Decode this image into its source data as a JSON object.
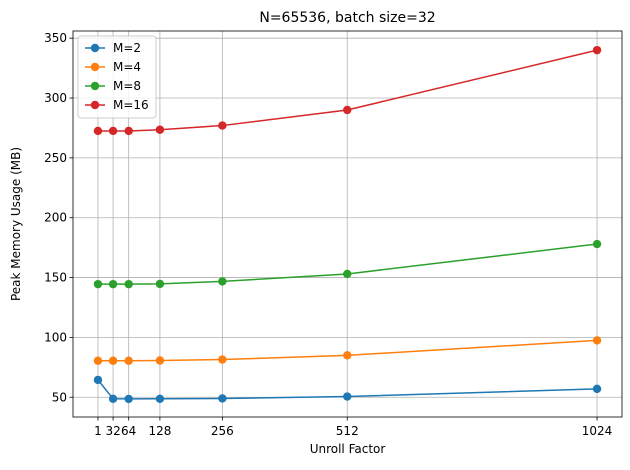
{
  "chart_data": {
    "type": "line",
    "title": "N=65536, batch size=32",
    "xlabel": "Unroll Factor",
    "ylabel": "Peak Memory Usage (MB)",
    "x": [
      1,
      32,
      64,
      128,
      256,
      512,
      1024
    ],
    "x_ticks": [
      1,
      32,
      64,
      128,
      256,
      512,
      1024
    ],
    "x_tick_labels": [
      "1",
      "32",
      "64",
      "128",
      "256",
      "512",
      "1024"
    ],
    "xlim": [
      -50.15,
      1075.15
    ],
    "ylim": [
      33.5,
      356
    ],
    "y_ticks": [
      50,
      100,
      150,
      200,
      250,
      300,
      350
    ],
    "y_tick_labels": [
      "50",
      "100",
      "150",
      "200",
      "250",
      "300",
      "350"
    ],
    "grid": true,
    "legend_position": "upper left",
    "series": [
      {
        "name": "M=2",
        "color": "#1f77b4",
        "values": [
          64.5,
          48.7,
          48.6,
          48.7,
          49.0,
          50.6,
          57.0
        ]
      },
      {
        "name": "M=4",
        "color": "#ff7f0e",
        "values": [
          80.5,
          80.5,
          80.5,
          80.7,
          81.5,
          85.0,
          97.5
        ]
      },
      {
        "name": "M=8",
        "color": "#2ca02c",
        "values": [
          144.5,
          144.5,
          144.5,
          144.7,
          146.8,
          153.0,
          178.0
        ]
      },
      {
        "name": "M=16",
        "color": "#d62728",
        "values": [
          272.5,
          272.5,
          272.5,
          273.5,
          277.0,
          290.0,
          340.0
        ]
      }
    ]
  }
}
